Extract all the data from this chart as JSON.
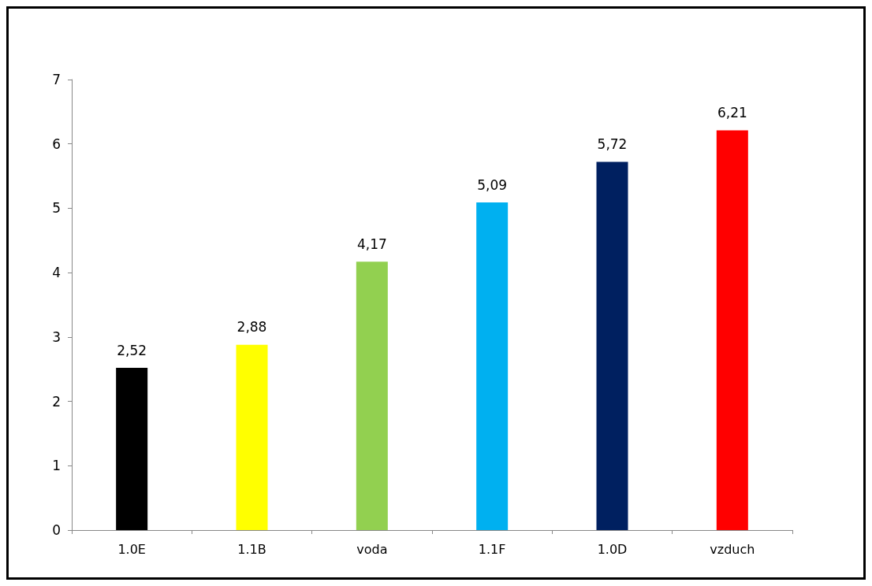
{
  "chart_data": {
    "type": "bar",
    "categories": [
      "1.0E",
      "1.1B",
      "voda",
      "1.1F",
      "1.0D",
      "vzduch"
    ],
    "values": [
      2.52,
      2.88,
      4.17,
      5.09,
      5.72,
      6.21
    ],
    "value_labels": [
      "2,52",
      "2,88",
      "4,17",
      "5,09",
      "5,72",
      "6,21"
    ],
    "colors": [
      "#000000",
      "#ffff00",
      "#92d050",
      "#00b0f0",
      "#002060",
      "#ff0000"
    ],
    "ylim": [
      0,
      7
    ],
    "yticks": [
      0,
      1,
      2,
      3,
      4,
      5,
      6,
      7
    ]
  }
}
